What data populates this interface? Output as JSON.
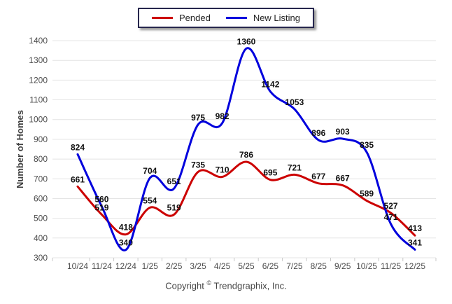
{
  "chart_data": {
    "type": "line",
    "title": "",
    "xlabel": "",
    "ylabel": "Number of Homes",
    "categories": [
      "10/24",
      "11/24",
      "12/24",
      "1/25",
      "2/25",
      "3/25",
      "4/25",
      "5/25",
      "6/25",
      "7/25",
      "8/25",
      "9/25",
      "10/25",
      "11/25",
      "12/25"
    ],
    "ylim": [
      300,
      1400
    ],
    "ytick_step": 100,
    "grid": "horizontal-only",
    "legend_position": "top-center",
    "smooth_curves": true,
    "point_labels_visible": true,
    "series": [
      {
        "name": "Pended",
        "color": "#cc0000",
        "values": [
          661,
          519,
          418,
          554,
          519,
          735,
          710,
          786,
          695,
          721,
          677,
          667,
          589,
          527,
          413
        ]
      },
      {
        "name": "New Listing",
        "color": "#0000dd",
        "values": [
          824,
          560,
          340,
          704,
          651,
          975,
          982,
          1360,
          1142,
          1053,
          896,
          903,
          835,
          471,
          341
        ]
      }
    ],
    "colors": {
      "gridline": "#e4e4e4",
      "tick": "#c8c8c8",
      "axis_text": "#4d4d4d",
      "axis_title_text": "#404040",
      "point_label_text": "#111111"
    }
  },
  "footer": {
    "copyright_prefix": "Copyright",
    "copyright_symbol": "©",
    "copyright_company": "Trendgraphix, Inc."
  }
}
